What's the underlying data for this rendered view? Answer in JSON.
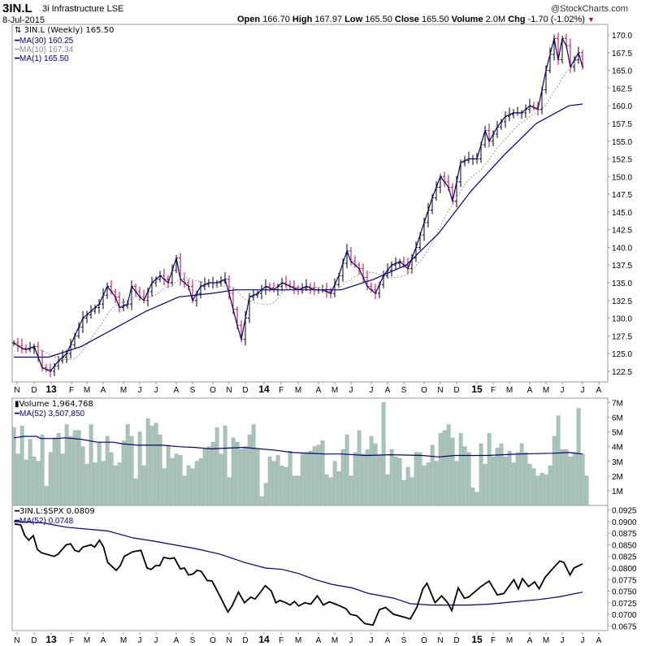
{
  "header": {
    "symbol": "3IN.L",
    "name": "3i Infrastructure LSE",
    "date": "8-Jul-2015",
    "brand": "@StockCharts.com",
    "open_label": "Open",
    "open": "166.70",
    "high_label": "High",
    "high": "167.97",
    "low_label": "Low",
    "low": "165.50",
    "close_label": "Close",
    "close": "165.50",
    "volume_label": "Volume",
    "volume": "2.0M",
    "chg_label": "Chg",
    "chg": "-1.70 (-1.02%)"
  },
  "colors": {
    "up": "#000000",
    "down": "#cc0033",
    "ma": "#000080",
    "ma10": "#999999",
    "volume": "#a9c4b8"
  },
  "chart_data": [
    {
      "type": "line",
      "title": "3IN.L (Weekly) 165.50",
      "legend": [
        "MA(30) 160.25",
        "MA(10) 167.34",
        "MA(1) 165.50"
      ],
      "ylim": [
        121,
        171.5
      ],
      "yticks": [
        "170.0",
        "167.5",
        "165.0",
        "162.5",
        "160.0",
        "157.5",
        "155.0",
        "152.5",
        "150.0",
        "147.5",
        "145.0",
        "142.5",
        "140.0",
        "137.5",
        "135.0",
        "132.5",
        "130.0",
        "127.5",
        "125.0",
        "122.5"
      ],
      "x_unit": "week index from Nov 2012",
      "close_points": [
        [
          0,
          126.5
        ],
        [
          2.6,
          125.5
        ],
        [
          5,
          126
        ],
        [
          7,
          123
        ],
        [
          9,
          122.5
        ],
        [
          11,
          124
        ],
        [
          13,
          125
        ],
        [
          15,
          127.5
        ],
        [
          17,
          130
        ],
        [
          19,
          131
        ],
        [
          21,
          132
        ],
        [
          23,
          134.5
        ],
        [
          25,
          133
        ],
        [
          26,
          131.5
        ],
        [
          28,
          132
        ],
        [
          29,
          134.5
        ],
        [
          31,
          133
        ],
        [
          32,
          132.5
        ],
        [
          34,
          135
        ],
        [
          36,
          136
        ],
        [
          38,
          135
        ],
        [
          40,
          138.5
        ],
        [
          41,
          135.5
        ],
        [
          43,
          134.5
        ],
        [
          44,
          132.5
        ],
        [
          46,
          134.5
        ],
        [
          48,
          135
        ],
        [
          50,
          135
        ],
        [
          52,
          135.5
        ],
        [
          53,
          133.5
        ],
        [
          55,
          129
        ],
        [
          56,
          127
        ],
        [
          57,
          130
        ],
        [
          58,
          133
        ],
        [
          60,
          133.5
        ],
        [
          62,
          134.5
        ],
        [
          64,
          134
        ],
        [
          66,
          135
        ],
        [
          68,
          134.5
        ],
        [
          70,
          134
        ],
        [
          72,
          134.5
        ],
        [
          74,
          134
        ],
        [
          76,
          134
        ],
        [
          78,
          133.5
        ],
        [
          80,
          136
        ],
        [
          82,
          139.5
        ],
        [
          83,
          138
        ],
        [
          85,
          137
        ],
        [
          87,
          134.5
        ],
        [
          89,
          133.5
        ],
        [
          91,
          136
        ],
        [
          93,
          137.5
        ],
        [
          95,
          138
        ],
        [
          97,
          137
        ],
        [
          99,
          140
        ],
        [
          101,
          143.5
        ],
        [
          103,
          147
        ],
        [
          105,
          150
        ],
        [
          107,
          148.5
        ],
        [
          108,
          146.5
        ],
        [
          110,
          152
        ],
        [
          112,
          152.5
        ],
        [
          114,
          152.5
        ],
        [
          116,
          156.5
        ],
        [
          117,
          155
        ],
        [
          119,
          157
        ],
        [
          121,
          158.5
        ],
        [
          123,
          159
        ],
        [
          125,
          159
        ],
        [
          127,
          160
        ],
        [
          129,
          159.5
        ],
        [
          131,
          165
        ],
        [
          133,
          169.5
        ],
        [
          134,
          166.5
        ],
        [
          135,
          169.5
        ],
        [
          136,
          168.5
        ],
        [
          137,
          165.5
        ],
        [
          139,
          167.5
        ],
        [
          140,
          165.5
        ]
      ],
      "ma30_points": [
        [
          0,
          124.5
        ],
        [
          8.6,
          124.5
        ],
        [
          16.6,
          126
        ],
        [
          24.6,
          128.5
        ],
        [
          32.6,
          131
        ],
        [
          40.6,
          133
        ],
        [
          48.6,
          133.5
        ],
        [
          54.6,
          134
        ],
        [
          62.6,
          134
        ],
        [
          72.6,
          134
        ],
        [
          80.6,
          134
        ],
        [
          88.6,
          135.5
        ],
        [
          96.6,
          137.5
        ],
        [
          104.6,
          142
        ],
        [
          112.6,
          148
        ],
        [
          120.6,
          153
        ],
        [
          128.6,
          157.5
        ],
        [
          136.6,
          160
        ],
        [
          140,
          160.25
        ]
      ]
    },
    {
      "type": "bar",
      "title": "Volume 1,964,768",
      "legend": [
        "MA(52) 3,507,850"
      ],
      "ylim": [
        0,
        7.3
      ],
      "yticks": [
        "7M",
        "6M",
        "5M",
        "4M",
        "3M",
        "2M",
        "1M"
      ],
      "unit": "millions",
      "values": [
        5.3,
        3.5,
        5.4,
        3.1,
        4.5,
        3.3,
        3.0,
        4.8,
        1.3,
        3.6,
        4.6,
        4.9,
        3.5,
        5.5,
        4.7,
        5.1,
        5.1,
        4.0,
        2.8,
        5.5,
        2.9,
        4.3,
        3.0,
        4.7,
        3.6,
        2.7,
        2.9,
        4.4,
        5.5,
        4.7,
        1.8,
        5.0,
        2.7,
        5.9,
        5.4,
        5.6,
        4.8,
        2.5,
        4.1,
        3.2,
        3.5,
        3.4,
        2.0,
        2.7,
        2.5,
        3.0,
        3.2,
        3.9,
        4.0,
        4.3,
        5.3,
        3.5,
        5.4,
        1.9,
        4.6,
        4.3,
        3.8,
        4.0,
        4.8,
        5.5,
        3.8,
        0.6,
        1.5,
        3.3,
        3.0,
        3.4,
        2.7,
        2.6,
        3.7,
        2.0,
        2.0,
        3.5,
        3.6,
        3.7,
        4.0,
        4.1,
        4.4,
        2.1,
        1.9,
        3.0,
        2.3,
        3.8,
        4.8,
        2.0,
        3.6,
        5.1,
        3.5,
        3.8,
        4.7,
        4.2,
        3.4,
        7.0,
        2.1,
        3.8,
        3.3,
        3.2,
        1.7,
        2.6,
        1.9,
        3.6,
        3.6,
        2.7,
        2.9,
        4.1,
        3.0,
        4.9,
        5.1,
        5.5,
        4.6,
        3.0,
        4.9,
        4.0,
        3.6,
        1.2,
        0.9,
        4.2,
        2.8,
        4.9,
        3.3,
        3.9,
        4.2,
        3.3,
        3.7,
        2.9,
        3.6,
        4.2,
        3.6,
        2.8,
        2.5,
        2.0,
        2.2,
        2.1,
        2.7,
        4.7,
        6.1,
        3.8,
        3.8,
        3.3,
        3.6,
        6.6,
        3.5,
        2.0
      ],
      "ma52_points": [
        [
          0,
          4.6
        ],
        [
          2.6,
          4.7
        ],
        [
          5.6,
          4.7
        ],
        [
          6.6,
          4.55
        ],
        [
          10.6,
          4.55
        ],
        [
          12.6,
          4.6
        ],
        [
          16.6,
          4.5
        ],
        [
          20.6,
          4.3
        ],
        [
          24.6,
          4.3
        ],
        [
          26.6,
          4.2
        ],
        [
          30.6,
          4.1
        ],
        [
          36.6,
          4.1
        ],
        [
          40.6,
          4.0
        ],
        [
          44.6,
          3.95
        ],
        [
          48.6,
          3.85
        ],
        [
          52.6,
          3.9
        ],
        [
          56.6,
          3.95
        ],
        [
          60.6,
          3.85
        ],
        [
          64.6,
          3.75
        ],
        [
          68.6,
          3.6
        ],
        [
          76.6,
          3.5
        ],
        [
          80.6,
          3.5
        ],
        [
          86.6,
          3.4
        ],
        [
          92.6,
          3.45
        ],
        [
          100.6,
          3.4
        ],
        [
          104.6,
          3.3
        ],
        [
          108.6,
          3.4
        ],
        [
          116.6,
          3.4
        ],
        [
          124.6,
          3.5
        ],
        [
          132.6,
          3.55
        ],
        [
          136.6,
          3.6
        ],
        [
          140,
          3.5
        ]
      ]
    },
    {
      "type": "line",
      "title": "3IN.L:$SPX 0.0809",
      "legend": [
        "MA(52) 0.0748"
      ],
      "ylim": [
        0.0665,
        0.0935
      ],
      "yticks": [
        "0.0925",
        "0.0900",
        "0.0875",
        "0.0850",
        "0.0825",
        "0.0800",
        "0.0775",
        "0.0750",
        "0.0725",
        "0.0700",
        "0.0675"
      ],
      "ratio_points": [
        [
          0.2,
          0.0895
        ],
        [
          1.7,
          0.0893
        ],
        [
          2.7,
          0.087
        ],
        [
          3.7,
          0.086
        ],
        [
          4.8,
          0.087
        ],
        [
          5.8,
          0.084
        ],
        [
          6.8,
          0.0833
        ],
        [
          9.9,
          0.0825
        ],
        [
          10.9,
          0.083
        ],
        [
          12.9,
          0.085
        ],
        [
          14,
          0.0852
        ],
        [
          15,
          0.0838
        ],
        [
          16,
          0.0835
        ],
        [
          17,
          0.0845
        ],
        [
          19,
          0.085
        ],
        [
          19.9,
          0.0845
        ],
        [
          21.1,
          0.086
        ],
        [
          22.1,
          0.0845
        ],
        [
          23.1,
          0.0812
        ],
        [
          25.2,
          0.0795
        ],
        [
          26.2,
          0.0805
        ],
        [
          27.2,
          0.0825
        ],
        [
          29.3,
          0.0835
        ],
        [
          31.3,
          0.0838
        ],
        [
          32.8,
          0.08
        ],
        [
          33.8,
          0.0797
        ],
        [
          34.9,
          0.0805
        ],
        [
          35.9,
          0.0805
        ],
        [
          36.9,
          0.0823
        ],
        [
          38.4,
          0.082
        ],
        [
          39.5,
          0.0822
        ],
        [
          41,
          0.0798
        ],
        [
          42,
          0.08
        ],
        [
          43,
          0.0785
        ],
        [
          44.1,
          0.0787
        ],
        [
          45.1,
          0.0795
        ],
        [
          46.1,
          0.0793
        ],
        [
          47.6,
          0.0773
        ],
        [
          48.8,
          0.0772
        ],
        [
          50.7,
          0.074
        ],
        [
          52.7,
          0.0705
        ],
        [
          53.7,
          0.0718
        ],
        [
          55.3,
          0.0748
        ],
        [
          56.8,
          0.0725
        ],
        [
          58.3,
          0.0737
        ],
        [
          59.4,
          0.0733
        ],
        [
          60.9,
          0.075
        ],
        [
          61.9,
          0.0762
        ],
        [
          63.4,
          0.075
        ],
        [
          64.5,
          0.0725
        ],
        [
          65.5,
          0.073
        ],
        [
          67,
          0.0725
        ],
        [
          68,
          0.072
        ],
        [
          69.1,
          0.0728
        ],
        [
          70.1,
          0.0718
        ],
        [
          71.6,
          0.0725
        ],
        [
          73.1,
          0.0722
        ],
        [
          74.7,
          0.074
        ],
        [
          76.2,
          0.072
        ],
        [
          77.7,
          0.0727
        ],
        [
          79.8,
          0.072
        ],
        [
          81.8,
          0.0712
        ],
        [
          82.8,
          0.07
        ],
        [
          84.4,
          0.0697
        ],
        [
          86.4,
          0.068
        ],
        [
          88.4,
          0.0677
        ],
        [
          90,
          0.071
        ],
        [
          91.5,
          0.0715
        ],
        [
          93.5,
          0.07
        ],
        [
          95.6,
          0.0695
        ],
        [
          97.6,
          0.069
        ],
        [
          99.2,
          0.0715
        ],
        [
          100.7,
          0.0755
        ],
        [
          101.7,
          0.0767
        ],
        [
          103.7,
          0.0725
        ],
        [
          105.3,
          0.074
        ],
        [
          106.8,
          0.0725
        ],
        [
          107.8,
          0.0708
        ],
        [
          109.4,
          0.0757
        ],
        [
          110.9,
          0.0735
        ],
        [
          111.9,
          0.0737
        ],
        [
          115,
          0.076
        ],
        [
          117,
          0.0772
        ],
        [
          119,
          0.0742
        ],
        [
          120.6,
          0.0745
        ],
        [
          123.1,
          0.0775
        ],
        [
          124.2,
          0.0755
        ],
        [
          125.2,
          0.0777
        ],
        [
          126.7,
          0.076
        ],
        [
          128.2,
          0.077
        ],
        [
          129.3,
          0.0755
        ],
        [
          130.8,
          0.078
        ],
        [
          132.8,
          0.08
        ],
        [
          134.4,
          0.0815
        ],
        [
          135.4,
          0.0812
        ],
        [
          136.9,
          0.0785
        ],
        [
          137.9,
          0.08
        ],
        [
          140,
          0.0809
        ]
      ],
      "ma52_points": [
        [
          0,
          0.09
        ],
        [
          6.8,
          0.0898
        ],
        [
          12.9,
          0.0888
        ],
        [
          23.1,
          0.088
        ],
        [
          29.3,
          0.0865
        ],
        [
          34.4,
          0.0858
        ],
        [
          39.5,
          0.085
        ],
        [
          44.6,
          0.0842
        ],
        [
          50.7,
          0.083
        ],
        [
          56.8,
          0.0812
        ],
        [
          61.9,
          0.08
        ],
        [
          66,
          0.0797
        ],
        [
          70.1,
          0.0788
        ],
        [
          74.2,
          0.0775
        ],
        [
          78.2,
          0.0765
        ],
        [
          83.3,
          0.0757
        ],
        [
          87.4,
          0.0745
        ],
        [
          93.5,
          0.0735
        ],
        [
          97.6,
          0.0723
        ],
        [
          102.7,
          0.072
        ],
        [
          111.9,
          0.072
        ],
        [
          117,
          0.0722
        ],
        [
          123.1,
          0.0727
        ],
        [
          129.3,
          0.0732
        ],
        [
          134.4,
          0.0738
        ],
        [
          140,
          0.0748
        ]
      ]
    }
  ],
  "x_axis": {
    "labels": [
      "N",
      "D",
      "13",
      "F",
      "M",
      "A",
      "M",
      "J",
      "J",
      "A",
      "S",
      "O",
      "N",
      "D",
      "14",
      "F",
      "M",
      "A",
      "M",
      "J",
      "J",
      "A",
      "S",
      "O",
      "N",
      "D",
      "15",
      "F",
      "M",
      "A",
      "M",
      "J",
      "J",
      "A"
    ]
  }
}
